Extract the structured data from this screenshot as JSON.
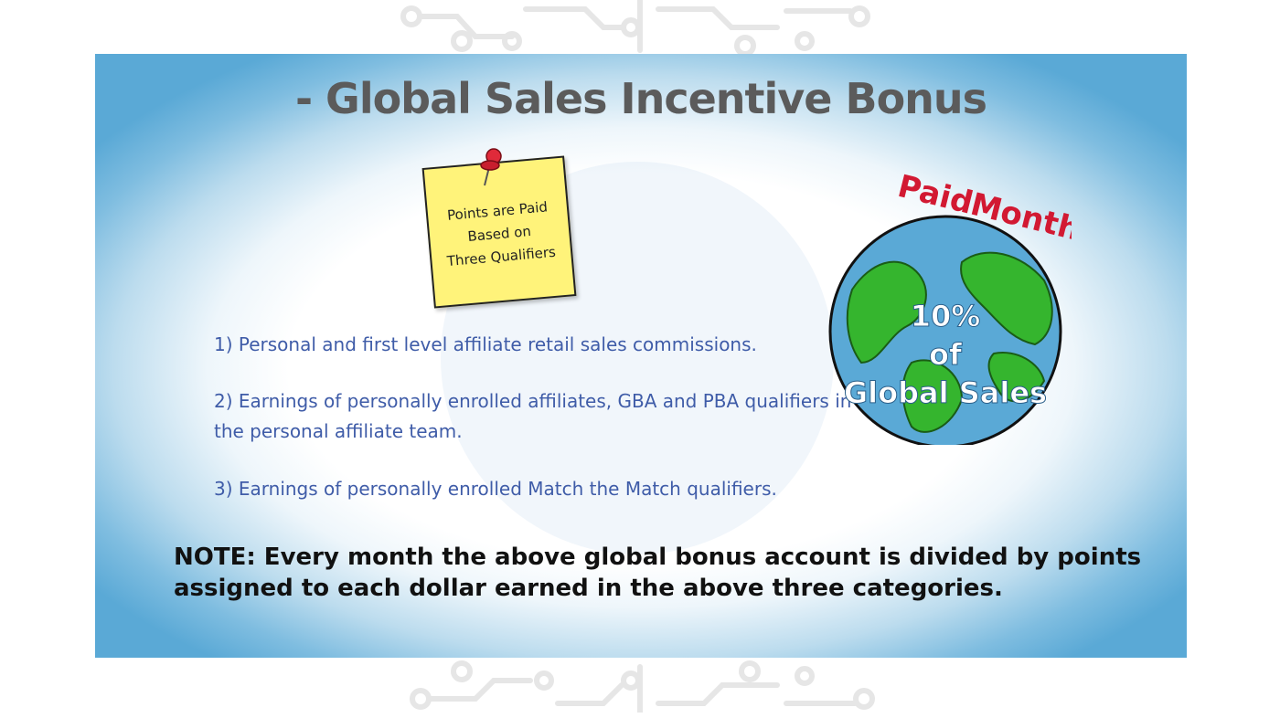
{
  "slide": {
    "title": "- Global Sales Incentive Bonus",
    "sticky_note": {
      "lines": [
        "Points are Paid",
        "Based on",
        "Three Qualifiers"
      ]
    },
    "items": [
      {
        "text": "1)  Personal and first level affiliate retail sales commissions."
      },
      {
        "text": "2)  Earnings of personally enrolled affiliates, GBA and PBA qualifiers in the personal affiliate team."
      },
      {
        "text": "3)  Earnings of personally enrolled Match the Match qualifiers."
      }
    ],
    "globe": {
      "banner_word1": "Paid",
      "banner_word2": "Monthly",
      "line1": "10%",
      "line2": "of",
      "line3": "Global Sales"
    },
    "note": "NOTE:  Every month the above global bonus account is divided by points assigned to each dollar earned in the above three categories."
  },
  "colors": {
    "title": "#5b5b5b",
    "items": "#3f5ca8",
    "accent_red": "#d21932",
    "ocean": "#5aa9d6",
    "land": "#35b52e",
    "sticky": "#fff37a"
  }
}
